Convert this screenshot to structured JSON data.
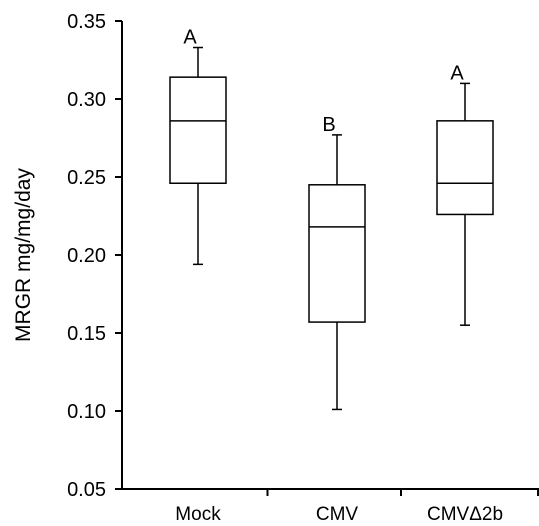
{
  "chart_data": {
    "type": "boxplot",
    "title": "",
    "xlabel": "",
    "ylabel": "MRGR mg/mg/day",
    "ylim": [
      0.05,
      0.35
    ],
    "yticks": [
      "0.05",
      "0.10",
      "0.15",
      "0.20",
      "0.25",
      "0.30",
      "0.35"
    ],
    "grid": false,
    "categories": [
      "Mock",
      "CMV",
      "CMVΔ2b"
    ],
    "boxes": [
      {
        "category": "Mock",
        "whisker_low": 0.194,
        "q1": 0.246,
        "median": 0.286,
        "q3": 0.314,
        "whisker_high": 0.333,
        "significance": "A"
      },
      {
        "category": "CMV",
        "whisker_low": 0.101,
        "q1": 0.157,
        "median": 0.218,
        "q3": 0.245,
        "whisker_high": 0.277,
        "significance": "B"
      },
      {
        "category": "CMVΔ2b",
        "whisker_low": 0.155,
        "q1": 0.226,
        "median": 0.246,
        "q3": 0.286,
        "whisker_high": 0.31,
        "significance": "A"
      }
    ]
  }
}
